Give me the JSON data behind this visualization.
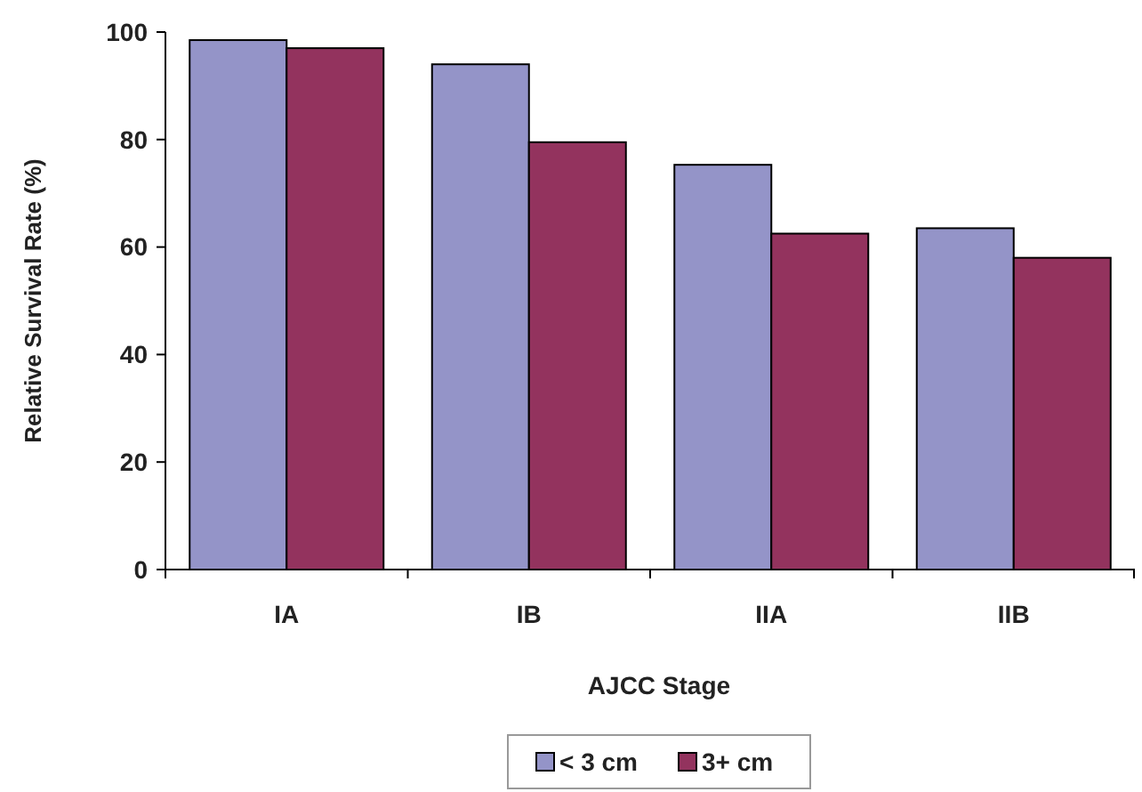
{
  "chart_data": {
    "type": "bar",
    "xlabel": "AJCC Stage",
    "ylabel": "Relative Survival Rate (%)",
    "categories": [
      "IA",
      "IB",
      "IIA",
      "IIB"
    ],
    "series": [
      {
        "name": "< 3 cm",
        "color": "#9494c8",
        "values": [
          98.5,
          94,
          75.3,
          63.5
        ]
      },
      {
        "name": "3+ cm",
        "color": "#93335e",
        "values": [
          97,
          79.5,
          62.5,
          58
        ]
      }
    ],
    "ylim": [
      0,
      100
    ],
    "yticks": [
      0,
      20,
      40,
      60,
      80,
      100
    ],
    "grid": false,
    "legend": "bottom"
  }
}
